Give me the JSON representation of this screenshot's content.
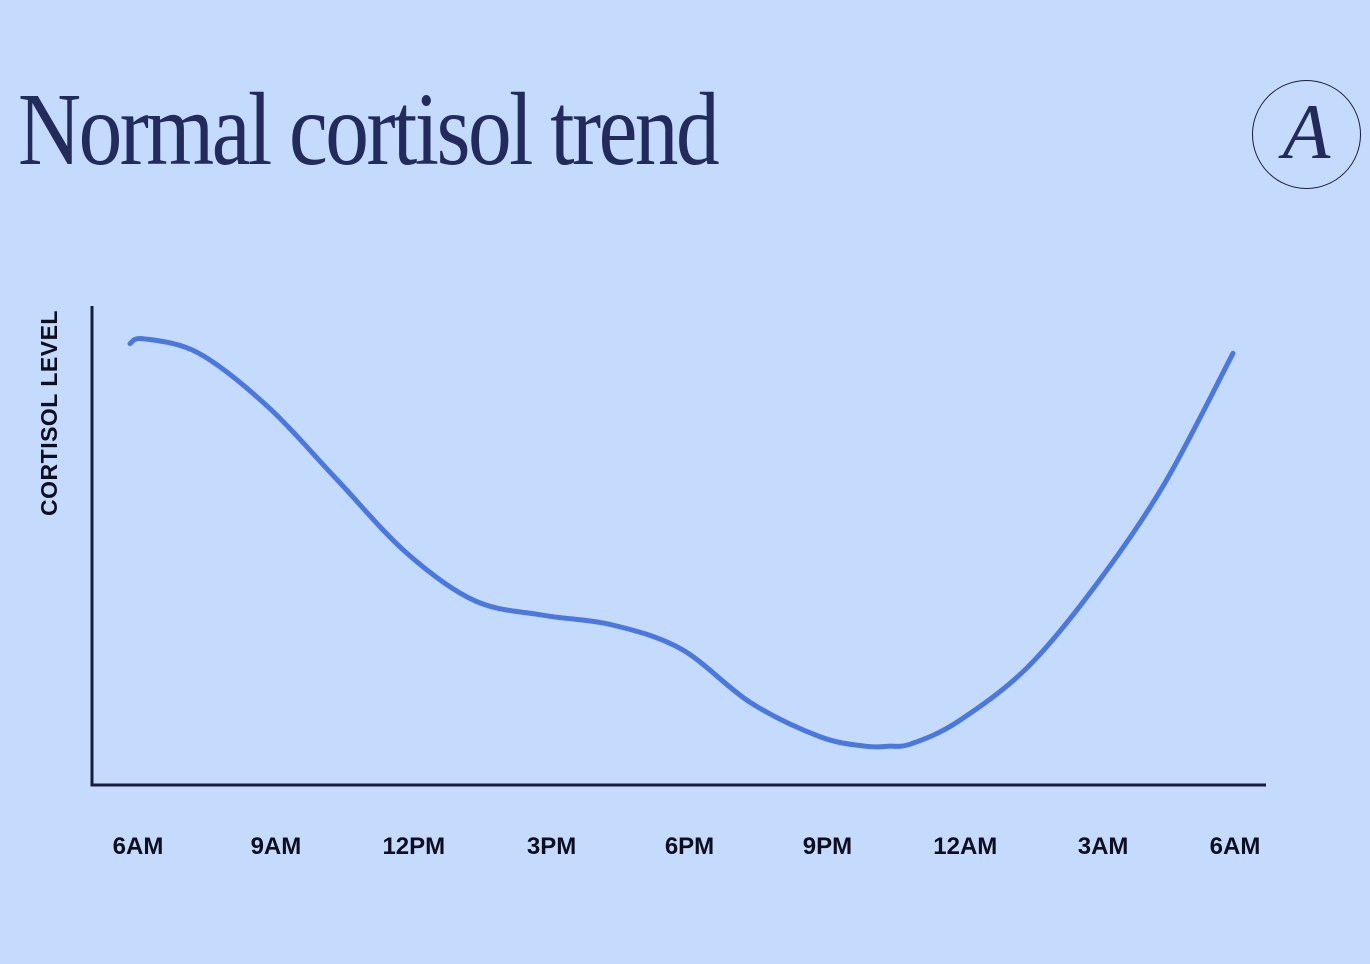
{
  "title": "Normal cortisol trend",
  "logo": {
    "letter": "A",
    "icon": "circle-letter-logo"
  },
  "colors": {
    "background": "#c5dbfe",
    "line": "#4a78e0",
    "axis": "#1a1d3a",
    "title": "#232a5c"
  },
  "chart_data": {
    "type": "line",
    "title": "Normal cortisol trend",
    "xlabel": "",
    "ylabel": "CORTISOL LEVEL",
    "categories": [
      "6AM",
      "9AM",
      "12PM",
      "3PM",
      "6PM",
      "9PM",
      "12AM",
      "3AM",
      "6AM"
    ],
    "x_hours": [
      0,
      3,
      6,
      9,
      12,
      15,
      18,
      21,
      24
    ],
    "ylim": [
      0,
      100
    ],
    "grid": false,
    "y_ticks_shown": false,
    "series": [
      {
        "x": [
          0,
          0.3,
          1.5,
          3,
          4.5,
          6,
          7.5,
          9,
          10.5,
          12,
          13.5,
          15,
          16,
          16.5,
          17,
          18,
          19.5,
          21,
          22.5,
          24
        ],
        "values": [
          91,
          92,
          89,
          78,
          63,
          48,
          38,
          35,
          33,
          28,
          17,
          10,
          8,
          8,
          8.5,
          13,
          24,
          41,
          62,
          89
        ]
      }
    ]
  }
}
